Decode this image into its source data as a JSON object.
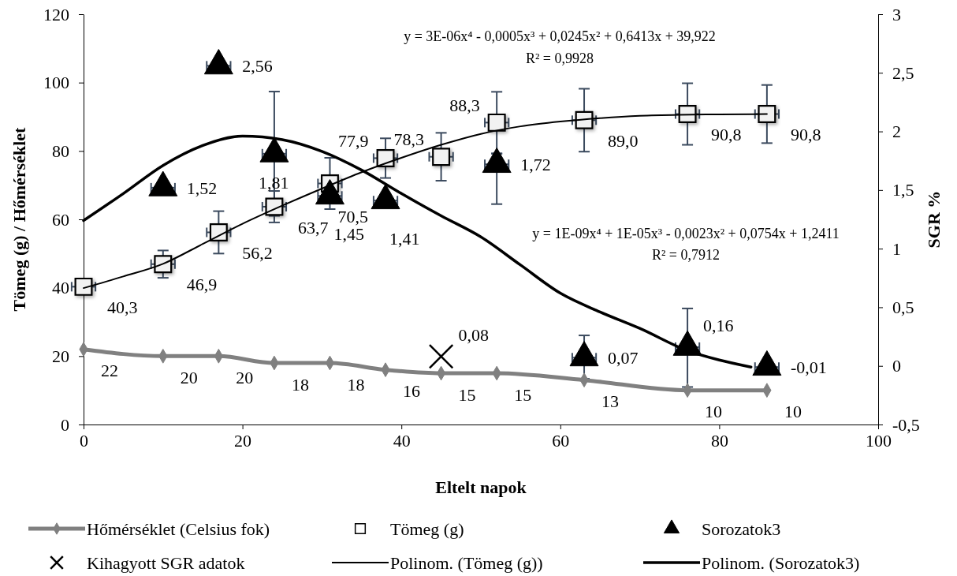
{
  "chart_data": {
    "type": "scatter",
    "xlabel": "Eltelt napok",
    "ylabel": "Tömeg (g) / Hőmérséklet",
    "y2label": "SGR %",
    "xlim": [
      0,
      100
    ],
    "xticks": [
      0,
      20,
      40,
      60,
      80,
      100
    ],
    "ylim": [
      0,
      120
    ],
    "yticks": [
      0,
      20,
      40,
      60,
      80,
      100,
      120
    ],
    "y2lim": [
      -0.5,
      3
    ],
    "y2ticks": [
      {
        "value": -0.5,
        "label": "-0,5"
      },
      0,
      {
        "value": 0.5,
        "label": "0,5"
      },
      1,
      {
        "value": 1.5,
        "label": "1,5"
      },
      2,
      {
        "value": 2.5,
        "label": "2,5"
      },
      3
    ],
    "grid": false,
    "legend": "bottom",
    "annotations": [
      "y = 3E-06x⁴ - 0,0005x³ + 0,0245x² + 0,6413x + 39,922",
      "R² = 0,9928",
      "y = 1E-09x⁴ + 1E-05x³ - 0,0023x² + 0,0754x + 1,2411",
      "R² = 0,7912"
    ],
    "series": [
      {
        "name": "Hőmérséklet (Celsius fok)",
        "type": "line",
        "marker": "diamond",
        "color": "#808080",
        "x": [
          0,
          10,
          17,
          24,
          31,
          38,
          45,
          52,
          63,
          76,
          86
        ],
        "values": [
          22,
          20,
          20,
          18,
          18,
          16,
          15,
          15,
          13,
          10,
          10
        ],
        "value_labels": [
          "22",
          "20",
          "20",
          "18",
          "18",
          "16",
          "15",
          "15",
          "13",
          "10",
          "10"
        ]
      },
      {
        "name": "Tömeg (g)",
        "marker": "square",
        "color": "#000000",
        "x": [
          0,
          10,
          17,
          24,
          31,
          38,
          45,
          52,
          63,
          76,
          86
        ],
        "values": [
          40.3,
          46.9,
          56.2,
          63.7,
          70.5,
          77.9,
          78.3,
          88.3,
          89.0,
          90.8,
          90.8
        ],
        "errors": [
          null,
          4,
          6.2,
          4.6,
          7.5,
          5.8,
          7,
          9,
          9.2,
          9,
          8.5
        ],
        "xerrors": [
          1.5,
          1.5,
          1.5,
          1.5,
          1.5,
          1.5,
          1.5,
          1.5,
          1.5,
          1.5,
          1.5
        ],
        "value_labels": [
          "40,3",
          "46,9",
          "56,2",
          "63,7",
          "70,5",
          "77,9",
          "78,3",
          "88,3",
          "89,0",
          "90,8",
          "90,8"
        ]
      },
      {
        "name": "Sorozatok3",
        "marker": "triangle",
        "axis": "y2",
        "color": "#000000",
        "x": [
          10,
          17,
          24,
          31,
          38,
          52,
          63,
          76,
          86
        ],
        "values": [
          1.52,
          2.56,
          1.81,
          1.45,
          1.41,
          1.72,
          0.07,
          0.16,
          -0.01
        ],
        "errors": [
          null,
          null,
          0.53,
          null,
          null,
          [
            1.38,
            1.81
          ],
          [
            -0.11,
            0.26
          ],
          [
            -0.18,
            0.49
          ],
          null
        ],
        "xerrors": [
          1.5,
          1.5,
          1.5,
          1.5,
          1.5,
          1.5,
          1.5,
          1.5,
          1.5
        ],
        "value_labels": [
          "1,52",
          "2,56",
          "1,81",
          "1,45",
          "1,41",
          "1,72",
          "0,07",
          "0,16",
          "-0,01"
        ]
      },
      {
        "name": "Kihagyott SGR adatok",
        "marker": "cross",
        "axis": "y2",
        "color": "#000000",
        "x": [
          45
        ],
        "values": [
          0.08
        ],
        "value_labels": [
          "0,08"
        ]
      },
      {
        "name": "Polinom. (Tömeg (g))",
        "type": "line",
        "marker": "none",
        "color": "#000000",
        "x": [
          0,
          5,
          10,
          15,
          20,
          25,
          30,
          35,
          40,
          45,
          50,
          55,
          60,
          65,
          70,
          75,
          80,
          86
        ],
        "values": [
          39.9,
          43.3,
          47,
          52.8,
          58.7,
          64,
          69,
          73.8,
          78,
          81.8,
          85,
          87.2,
          88.6,
          89.6,
          90.3,
          90.6,
          90.7,
          90.8
        ]
      },
      {
        "name": "Polinom. (Sorozatok3)",
        "type": "line",
        "marker": "none",
        "axis": "y2",
        "color": "#000000",
        "x": [
          0,
          5,
          10,
          15,
          20,
          25,
          30,
          35,
          40,
          45,
          50,
          55,
          60,
          65,
          70,
          76,
          80,
          84
        ],
        "values": [
          1.24,
          1.47,
          1.71,
          1.88,
          1.96,
          1.93,
          1.83,
          1.67,
          1.47,
          1.28,
          1.1,
          0.86,
          0.62,
          0.46,
          0.32,
          0.13,
          0.05,
          -0.01
        ]
      }
    ]
  }
}
